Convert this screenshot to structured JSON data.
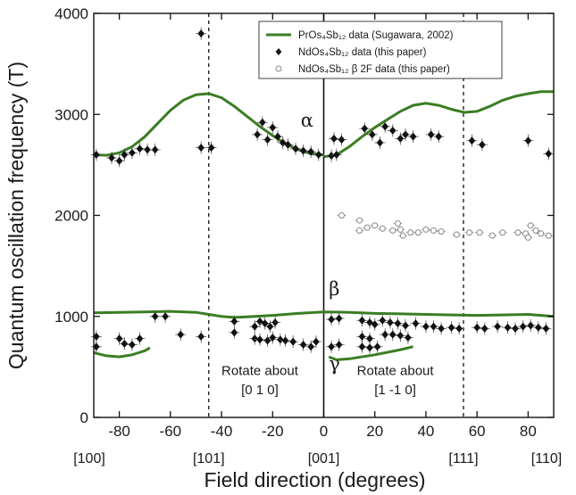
{
  "chart_data": {
    "type": "scatter",
    "xlabel": "Field direction (degrees)",
    "ylabel": "Quantum oscillation frequency (T)",
    "xlim": [
      -90,
      90
    ],
    "ylim": [
      0,
      4000
    ],
    "x_ticks": [
      -80,
      -60,
      -40,
      -20,
      0,
      20,
      40,
      60,
      80
    ],
    "y_ticks": [
      0,
      1000,
      2000,
      3000,
      4000
    ],
    "direction_labels": [
      {
        "x": -90,
        "label": "[100]"
      },
      {
        "x": -45,
        "label": "[101]"
      },
      {
        "x": 0,
        "label": "[001]"
      },
      {
        "x": 54.7,
        "label": "[111]"
      },
      {
        "x": 90,
        "label": "[110]"
      }
    ],
    "vertical_lines": [
      {
        "x": -45,
        "style": "dashed"
      },
      {
        "x": 0,
        "style": "solid"
      },
      {
        "x": 54.7,
        "style": "dashed"
      }
    ],
    "annotations": [
      {
        "text": "Rotate about",
        "x": -25,
        "y": 420
      },
      {
        "text": "[0 1 0]",
        "x": -25,
        "y": 230
      },
      {
        "text": "Rotate about",
        "x": 28,
        "y": 420
      },
      {
        "text": "[1 -1 0]",
        "x": 28,
        "y": 230
      }
    ],
    "branch_labels": [
      {
        "text": "α",
        "x": -9,
        "y": 2880
      },
      {
        "text": "β",
        "x": 2,
        "y": 1210
      },
      {
        "text": "γ",
        "x": 2,
        "y": 470
      }
    ],
    "legend": {
      "position": "top-right",
      "entries": [
        {
          "label": "PrOs₄Sb₁₂ data (Sugawara, 2002)",
          "marker": "line",
          "color": "#3a7d23"
        },
        {
          "label": "NdOs₄Sb₁₂ data (this paper)",
          "marker": "filled-diamond",
          "color": "#111111"
        },
        {
          "label": "NdOs₄Sb₁₂ β  2F  data (this paper)",
          "marker": "open-circle",
          "color": "#888888"
        }
      ]
    },
    "series": [
      {
        "name": "PrOs₄Sb₁₂ data (Sugawara, 2002)",
        "kind": "line",
        "color": "#3a7d23",
        "segments": [
          [
            [
              -90,
              2600
            ],
            [
              -85,
              2595
            ],
            [
              -80,
              2620
            ],
            [
              -75,
              2680
            ],
            [
              -70,
              2780
            ],
            [
              -65,
              2910
            ],
            [
              -60,
              3040
            ],
            [
              -55,
              3140
            ],
            [
              -50,
              3195
            ],
            [
              -45,
              3205
            ],
            [
              -40,
              3165
            ],
            [
              -35,
              3080
            ],
            [
              -30,
              2980
            ],
            [
              -25,
              2880
            ],
            [
              -20,
              2790
            ],
            [
              -15,
              2710
            ],
            [
              -10,
              2650
            ],
            [
              -5,
              2610
            ],
            [
              0,
              2600
            ]
          ],
          [
            [
              0,
              2580
            ],
            [
              5,
              2600
            ],
            [
              10,
              2680
            ],
            [
              15,
              2780
            ],
            [
              20,
              2870
            ],
            [
              25,
              2950
            ],
            [
              30,
              3030
            ],
            [
              35,
              3090
            ],
            [
              40,
              3110
            ],
            [
              45,
              3090
            ],
            [
              50,
              3050
            ],
            [
              55,
              3020
            ],
            [
              60,
              3030
            ],
            [
              65,
              3080
            ],
            [
              70,
              3140
            ],
            [
              75,
              3180
            ],
            [
              80,
              3205
            ],
            [
              85,
              3225
            ],
            [
              90,
              3225
            ]
          ],
          [
            [
              -90,
              1035
            ],
            [
              -80,
              1040
            ],
            [
              -70,
              1045
            ],
            [
              -60,
              1050
            ],
            [
              -50,
              1040
            ],
            [
              -45,
              1020
            ],
            [
              -40,
              1000
            ],
            [
              -35,
              990
            ],
            [
              -30,
              995
            ],
            [
              -20,
              1010
            ],
            [
              -10,
              1030
            ],
            [
              0,
              1045
            ],
            [
              10,
              1040
            ],
            [
              20,
              1030
            ],
            [
              30,
              1025
            ],
            [
              40,
              1020
            ],
            [
              50,
              1015
            ],
            [
              60,
              1010
            ],
            [
              70,
              1015
            ],
            [
              80,
              1020
            ],
            [
              90,
              1000
            ]
          ],
          [
            [
              -90,
              640
            ],
            [
              -85,
              610
            ],
            [
              -80,
              600
            ],
            [
              -75,
              620
            ],
            [
              -70,
              660
            ],
            [
              -68,
              690
            ]
          ],
          [
            [
              2,
              600
            ],
            [
              5,
              570
            ],
            [
              10,
              580
            ],
            [
              20,
              620
            ],
            [
              30,
              670
            ],
            [
              35,
              700
            ]
          ]
        ]
      },
      {
        "name": "NdOs₄Sb₁₂ data (this paper)",
        "kind": "scatter",
        "marker": "filled-diamond",
        "color": "#111111",
        "points": [
          [
            -89,
            2600
          ],
          [
            -83,
            2570
          ],
          [
            -80,
            2540
          ],
          [
            -78,
            2600
          ],
          [
            -75,
            2620
          ],
          [
            -72,
            2660
          ],
          [
            -69,
            2650
          ],
          [
            -66,
            2650
          ],
          [
            -48,
            3800
          ],
          [
            -48,
            2670
          ],
          [
            -44,
            2670
          ],
          [
            -26,
            2800
          ],
          [
            -24,
            2920
          ],
          [
            -22,
            2750
          ],
          [
            -20,
            2870
          ],
          [
            -18,
            2780
          ],
          [
            -16,
            2720
          ],
          [
            -14,
            2700
          ],
          [
            -11,
            2660
          ],
          [
            -8,
            2640
          ],
          [
            -5,
            2630
          ],
          [
            -2,
            2600
          ],
          [
            3,
            2590
          ],
          [
            5,
            2600
          ],
          [
            4,
            2760
          ],
          [
            7,
            2750
          ],
          [
            16,
            2860
          ],
          [
            19,
            2800
          ],
          [
            22,
            2720
          ],
          [
            24,
            2880
          ],
          [
            27,
            2840
          ],
          [
            30,
            2760
          ],
          [
            32,
            2800
          ],
          [
            35,
            2780
          ],
          [
            42,
            2800
          ],
          [
            45,
            2780
          ],
          [
            58,
            2740
          ],
          [
            62,
            2700
          ],
          [
            80,
            2740
          ],
          [
            88,
            2610
          ],
          [
            -89,
            800
          ],
          [
            -89,
            700
          ],
          [
            -80,
            780
          ],
          [
            -78,
            730
          ],
          [
            -75,
            720
          ],
          [
            -72,
            780
          ],
          [
            -66,
            1000
          ],
          [
            -62,
            1000
          ],
          [
            -56,
            820
          ],
          [
            -48,
            800
          ],
          [
            -35,
            950
          ],
          [
            -35,
            840
          ],
          [
            -27,
            900
          ],
          [
            -25,
            950
          ],
          [
            -23,
            930
          ],
          [
            -21,
            900
          ],
          [
            -19,
            940
          ],
          [
            -27,
            780
          ],
          [
            -25,
            770
          ],
          [
            -22,
            760
          ],
          [
            -20,
            790
          ],
          [
            -17,
            770
          ],
          [
            -15,
            760
          ],
          [
            -12,
            750
          ],
          [
            -8,
            720
          ],
          [
            -5,
            700
          ],
          [
            -3,
            750
          ],
          [
            3,
            970
          ],
          [
            6,
            980
          ],
          [
            3,
            700
          ],
          [
            6,
            720
          ],
          [
            15,
            960
          ],
          [
            18,
            940
          ],
          [
            20,
            920
          ],
          [
            23,
            960
          ],
          [
            26,
            940
          ],
          [
            29,
            930
          ],
          [
            32,
            910
          ],
          [
            36,
            930
          ],
          [
            40,
            900
          ],
          [
            43,
            900
          ],
          [
            46,
            880
          ],
          [
            50,
            890
          ],
          [
            53,
            880
          ],
          [
            15,
            800
          ],
          [
            18,
            780
          ],
          [
            21,
            700
          ],
          [
            24,
            820
          ],
          [
            27,
            820
          ],
          [
            30,
            810
          ],
          [
            33,
            790
          ],
          [
            15,
            700
          ],
          [
            18,
            690
          ],
          [
            60,
            890
          ],
          [
            63,
            880
          ],
          [
            68,
            900
          ],
          [
            72,
            890
          ],
          [
            75,
            880
          ],
          [
            78,
            900
          ],
          [
            81,
            910
          ],
          [
            84,
            890
          ],
          [
            87,
            880
          ]
        ]
      },
      {
        "name": "NdOs₄Sb₁₂ β  2F  data (this paper)",
        "kind": "scatter",
        "marker": "open-circle",
        "color": "#888888",
        "points": [
          [
            7,
            2000
          ],
          [
            14,
            1950
          ],
          [
            14,
            1850
          ],
          [
            17,
            1880
          ],
          [
            20,
            1900
          ],
          [
            23,
            1870
          ],
          [
            27,
            1850
          ],
          [
            29,
            1920
          ],
          [
            30,
            1860
          ],
          [
            31,
            1800
          ],
          [
            34,
            1830
          ],
          [
            37,
            1830
          ],
          [
            40,
            1860
          ],
          [
            43,
            1850
          ],
          [
            46,
            1840
          ],
          [
            52,
            1810
          ],
          [
            57,
            1830
          ],
          [
            61,
            1830
          ],
          [
            66,
            1800
          ],
          [
            70,
            1830
          ],
          [
            76,
            1830
          ],
          [
            79,
            1820
          ],
          [
            81,
            1900
          ],
          [
            80,
            1780
          ],
          [
            83,
            1850
          ],
          [
            85,
            1820
          ],
          [
            88,
            1800
          ]
        ]
      }
    ]
  }
}
